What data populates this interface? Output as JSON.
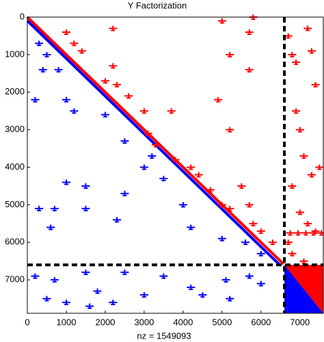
{
  "chart_data": {
    "type": "spy",
    "title": "Y Factorization",
    "xlabel": "nz = 1549093",
    "xlim": [
      0,
      7600
    ],
    "ylim": [
      0,
      7890
    ],
    "xticks": [
      0,
      1000,
      2000,
      3000,
      4000,
      5000,
      6000,
      7000
    ],
    "yticks": [
      0,
      1000,
      2000,
      3000,
      4000,
      5000,
      6000,
      7000
    ],
    "partition": 6600,
    "series": [
      {
        "color": "#ff0000",
        "style": "line",
        "x": [
          0,
          6580
        ],
        "y": [
          0,
          6580
        ]
      },
      {
        "color": "#0000ff",
        "style": "line",
        "x": [
          0,
          6480
        ],
        "y": [
          100,
          6600
        ]
      },
      {
        "color": "#ff0000",
        "style": "points",
        "x": [
          1000,
          1200,
          1400,
          2200,
          2200,
          2300,
          2000,
          2600,
          3000,
          3100,
          3300,
          3700,
          3800,
          4200,
          4400,
          4700,
          5000,
          5200,
          5200,
          5200,
          5700,
          5700,
          5700,
          5800,
          6000,
          6300,
          5000,
          5800,
          4900,
          5500,
          6700,
          6800,
          6900,
          7200,
          7300,
          7400,
          6900,
          7000,
          7100,
          7300,
          7500,
          6800,
          7000,
          7200,
          7400,
          6700,
          6800,
          7100,
          6750,
          6950,
          7150,
          7350,
          7550
        ],
        "y": [
          400,
          700,
          900,
          300,
          1300,
          1800,
          1700,
          2100,
          2500,
          3100,
          3400,
          2500,
          3800,
          4000,
          4200,
          4600,
          5000,
          1000,
          3000,
          5100,
          400,
          1400,
          5000,
          5500,
          5700,
          6000,
          100,
          0,
          2200,
          4500,
          500,
          1000,
          1200,
          300,
          900,
          1800,
          2500,
          3000,
          3700,
          4200,
          4000,
          4500,
          5200,
          5500,
          5700,
          6000,
          6300,
          6500,
          5750,
          5750,
          5750,
          5750,
          5750
        ]
      },
      {
        "color": "#0000ff",
        "style": "points",
        "x": [
          300,
          500,
          800,
          400,
          200,
          1000,
          1200,
          2000,
          2500,
          3000,
          3200,
          3500,
          1000,
          1500,
          2500,
          4000,
          300,
          700,
          1500,
          2300,
          4200,
          600,
          5000,
          5600,
          6000,
          200,
          700,
          1500,
          2500,
          3500,
          1800,
          3000,
          4200,
          500,
          1000,
          1600,
          2200,
          5100,
          5200,
          5700,
          6000,
          4500
        ],
        "y": [
          700,
          1000,
          1400,
          1400,
          2200,
          2200,
          2500,
          2600,
          3300,
          4000,
          3700,
          4300,
          4400,
          4500,
          4700,
          5000,
          5100,
          5100,
          5100,
          5400,
          5600,
          5600,
          5900,
          6000,
          6300,
          6900,
          7000,
          6800,
          6800,
          6900,
          7300,
          7400,
          7200,
          7500,
          7600,
          7700,
          7600,
          7000,
          7500,
          6900,
          7100,
          7400
        ]
      }
    ]
  }
}
